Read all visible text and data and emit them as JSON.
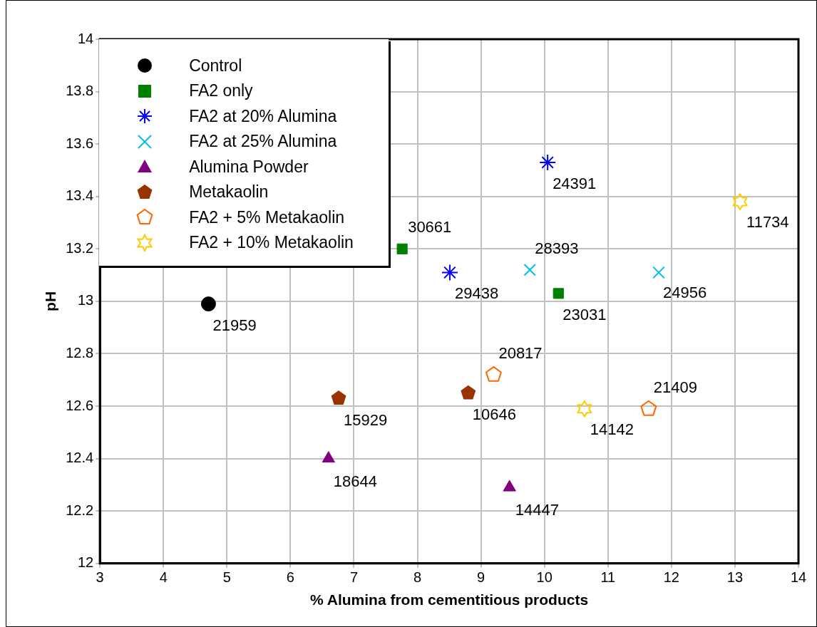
{
  "chart_data": {
    "type": "scatter",
    "xlabel": "% Alumina from cementitious products",
    "ylabel": "pH",
    "xlim": [
      3,
      14
    ],
    "xticks": [
      3,
      4,
      5,
      6,
      7,
      8,
      9,
      10,
      11,
      12,
      13,
      14
    ],
    "ylim": [
      12,
      14
    ],
    "yticks": [
      12,
      12.2,
      12.4,
      12.6,
      12.8,
      13,
      13.2,
      13.4,
      13.6,
      13.8,
      14
    ],
    "grid": true,
    "legend": "top left",
    "series": [
      {
        "name": "Control",
        "color": "#000000",
        "marker": "circle",
        "x": [
          4.71
        ],
        "values": [
          12.99
        ]
      },
      {
        "name": "FA2 only",
        "color": "#008000",
        "marker": "square",
        "x": [
          7.76,
          10.22
        ],
        "values": [
          13.2,
          13.03
        ]
      },
      {
        "name": "FA2 at 20% Alumina",
        "color": "#0000ff",
        "x": [
          8.51,
          10.05
        ],
        "values": [
          13.11,
          13.53
        ]
      },
      {
        "name": "FA2 at 25% Alumina",
        "color": "#00c0f0",
        "marker": "cross",
        "x": [
          9.77,
          11.8
        ],
        "values": [
          13.12,
          13.11
        ]
      },
      {
        "name": "Alumina Powder",
        "color": "#800080",
        "marker": "triangle",
        "x": [
          6.6,
          9.45
        ],
        "values": [
          12.4,
          12.29
        ]
      },
      {
        "name": "Metakaolin",
        "color": "#993300",
        "x": [
          6.76,
          8.8
        ],
        "values": [
          12.63,
          12.65
        ]
      },
      {
        "name": "FA2 + 5% Metakaolin",
        "color": "#ff6600",
        "x": [
          9.2,
          11.64
        ],
        "values": [
          12.72,
          12.59
        ]
      },
      {
        "name": "FA2 + 10% Metakaolin",
        "color": "#ffcc00",
        "x": [
          10.63,
          13.08
        ],
        "values": [
          12.59,
          13.38
        ]
      }
    ],
    "annotations": [
      {
        "text": "21959",
        "x": 4.71,
        "y": 12.99
      },
      {
        "text": "30661",
        "x": 7.76,
        "y": 13.2
      },
      {
        "text": "23031",
        "x": 10.22,
        "y": 13.03
      },
      {
        "text": "29438",
        "x": 8.51,
        "y": 13.11
      },
      {
        "text": "24391",
        "x": 10.05,
        "y": 13.53
      },
      {
        "text": "28393",
        "x": 9.77,
        "y": 13.12
      },
      {
        "text": "24956",
        "x": 11.8,
        "y": 13.11
      },
      {
        "text": "18644",
        "x": 6.6,
        "y": 12.4
      },
      {
        "text": "14447",
        "x": 9.45,
        "y": 12.29
      },
      {
        "text": "15929",
        "x": 6.76,
        "y": 12.63
      },
      {
        "text": "10646",
        "x": 8.8,
        "y": 12.65
      },
      {
        "text": "20817",
        "x": 9.2,
        "y": 12.72
      },
      {
        "text": "21409",
        "x": 11.64,
        "y": 12.59
      },
      {
        "text": "14142",
        "x": 10.63,
        "y": 12.59
      },
      {
        "text": "11734",
        "x": 13.08,
        "y": 13.38
      }
    ]
  }
}
